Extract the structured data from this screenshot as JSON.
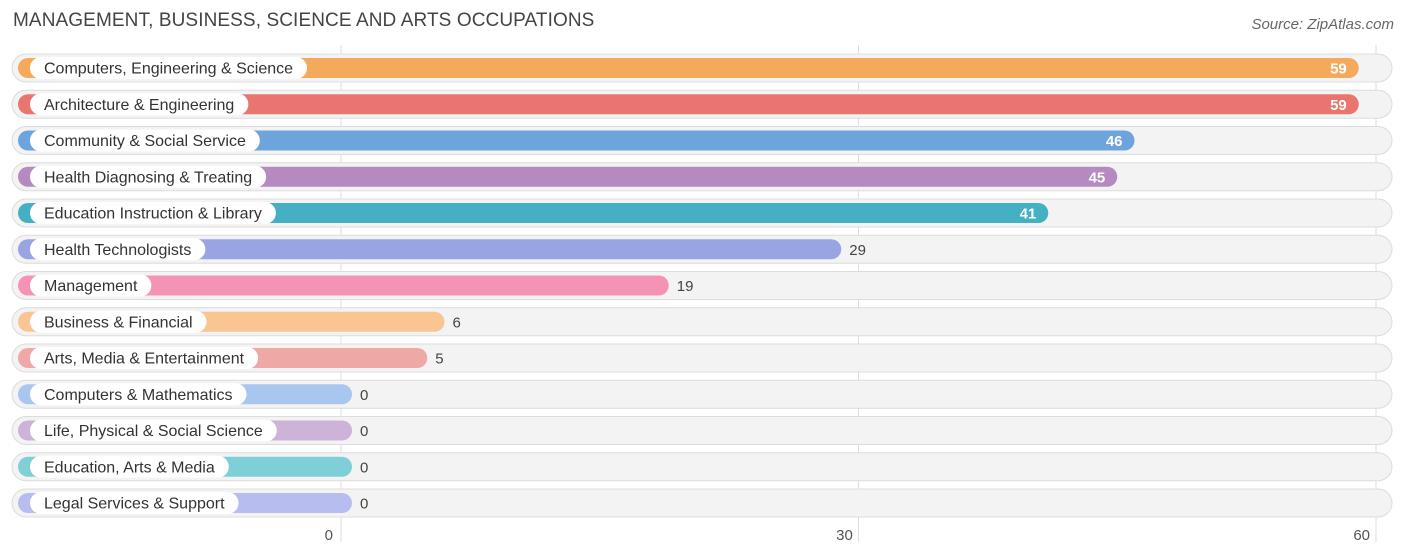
{
  "chart_data": {
    "type": "bar",
    "orientation": "horizontal",
    "title": "MANAGEMENT, BUSINESS, SCIENCE AND ARTS OCCUPATIONS",
    "source": "Source: ZipAtlas.com",
    "xlim": [
      0,
      60
    ],
    "x_ticks": [
      "0",
      "30",
      "60"
    ],
    "grid": true,
    "categories": [
      "Computers, Engineering & Science",
      "Architecture & Engineering",
      "Community & Social Service",
      "Health Diagnosing & Treating",
      "Education Instruction & Library",
      "Health Technologists",
      "Management",
      "Business & Financial",
      "Arts, Media & Entertainment",
      "Computers & Mathematics",
      "Life, Physical & Social Science",
      "Education, Arts & Media",
      "Legal Services & Support"
    ],
    "values": [
      59,
      59,
      46,
      45,
      41,
      29,
      19,
      6,
      5,
      0,
      0,
      0,
      0
    ],
    "value_labels": [
      "59",
      "59",
      "46",
      "45",
      "41",
      "29",
      "19",
      "6",
      "5",
      "0",
      "0",
      "0",
      "0"
    ],
    "colors": [
      "#f5a95c",
      "#e9756f",
      "#6ea4dc",
      "#b48ac0",
      "#44b0c2",
      "#99a4e3",
      "#f593b6",
      "#f9c593",
      "#eea9a7",
      "#a9c7ee",
      "#cdb3d8",
      "#7fcfd6",
      "#b8bdf0"
    ]
  }
}
